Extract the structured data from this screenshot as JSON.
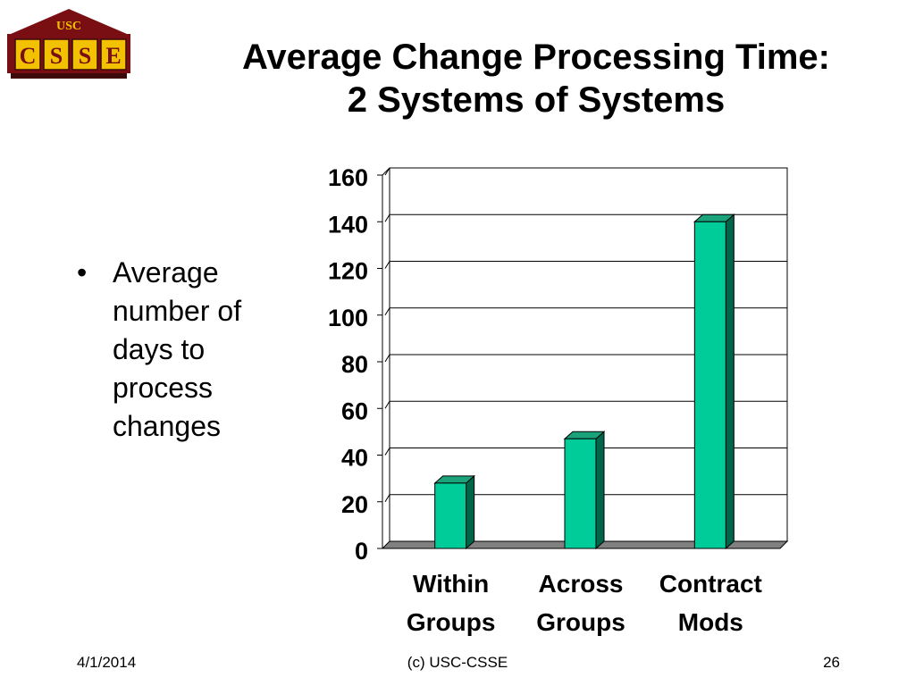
{
  "slide": {
    "title_line1": "Average Change Processing Time:",
    "title_line2": "2 Systems of Systems",
    "bullet_symbol": "•",
    "bullet_text": "Average number of days to process changes",
    "footer_date": "4/1/2014",
    "footer_center": "(c) USC-CSSE",
    "footer_page": "26"
  },
  "logo": {
    "top_text": "USC",
    "letters": [
      "C",
      "S",
      "S",
      "E"
    ],
    "colors": {
      "maroon": "#7a0f13",
      "gold": "#f2c200",
      "dark": "#3d0a0a"
    }
  },
  "chart_data": {
    "type": "bar",
    "style": "3d",
    "categories": [
      "Within Groups",
      "Across Groups",
      "Contract Mods"
    ],
    "category_lines": [
      [
        "Within",
        "Groups"
      ],
      [
        "Across",
        "Groups"
      ],
      [
        "Contract",
        "Mods"
      ]
    ],
    "values": [
      28,
      47,
      140
    ],
    "ylim": [
      0,
      160
    ],
    "yticks": [
      "0",
      "20",
      "40",
      "60",
      "80",
      "100",
      "120",
      "140",
      "160"
    ],
    "grid": true,
    "legend": "none",
    "colors": {
      "bar_front": "#00cc99",
      "bar_top": "#1aa37a",
      "bar_side": "#006649",
      "floor": "#808080",
      "grid": "#000000"
    }
  }
}
